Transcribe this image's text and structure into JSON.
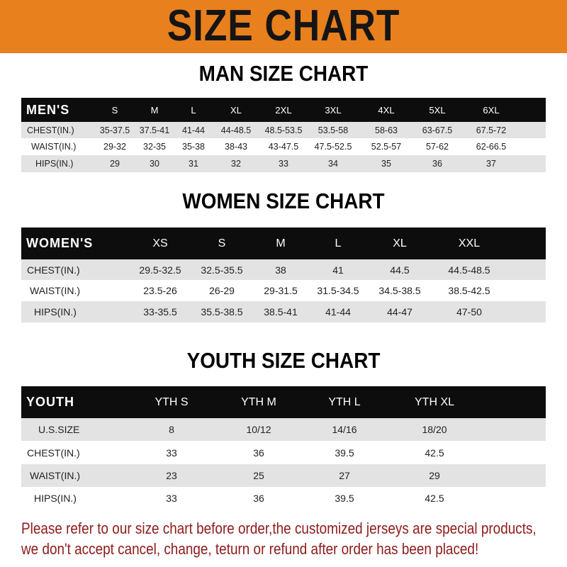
{
  "banner": {
    "title": "SIZE CHART",
    "color": "#E8801E"
  },
  "men": {
    "title": "MAN SIZE CHART",
    "header": "MEN'S",
    "sizes": [
      "S",
      "M",
      "L",
      "XL",
      "2XL",
      "3XL",
      "4XL",
      "5XL",
      "6XL"
    ],
    "rows": [
      {
        "label": "CHEST(IN.)",
        "values": [
          "35-37.5",
          "37.5-41",
          "41-44",
          "44-48.5",
          "48.5-53.5",
          "53.5-58",
          "58-63",
          "63-67.5",
          "67.5-72"
        ]
      },
      {
        "label": "WAIST(IN.)",
        "values": [
          "29-32",
          "32-35",
          "35-38",
          "38-43",
          "43-47.5",
          "47.5-52.5",
          "52.5-57",
          "57-62",
          "62-66.5"
        ]
      },
      {
        "label": "HIPS(IN.)",
        "values": [
          "29",
          "30",
          "31",
          "32",
          "33",
          "34",
          "35",
          "36",
          "37"
        ]
      }
    ]
  },
  "women": {
    "title": "WOMEN SIZE CHART",
    "header": "WOMEN'S",
    "sizes": [
      "XS",
      "S",
      "M",
      "L",
      "XL",
      "XXL"
    ],
    "rows": [
      {
        "label": "CHEST(IN.)",
        "values": [
          "29.5-32.5",
          "32.5-35.5",
          "38",
          "41",
          "44.5",
          "44.5-48.5"
        ]
      },
      {
        "label": "WAIST(IN.)",
        "values": [
          "23.5-26",
          "26-29",
          "29-31.5",
          "31.5-34.5",
          "34.5-38.5",
          "38.5-42.5"
        ]
      },
      {
        "label": "HIPS(IN.)",
        "values": [
          "33-35.5",
          "35.5-38.5",
          "38.5-41",
          "41-44",
          "44-47",
          "47-50"
        ]
      }
    ]
  },
  "youth": {
    "title": "YOUTH SIZE CHART",
    "header": "YOUTH",
    "sizes": [
      "YTH S",
      "YTH M",
      "YTH L",
      "YTH XL"
    ],
    "rows": [
      {
        "label": "U.S.SIZE",
        "values": [
          "8",
          "10/12",
          "14/16",
          "18/20"
        ]
      },
      {
        "label": "CHEST(IN.)",
        "values": [
          "33",
          "36",
          "39.5",
          "42.5"
        ]
      },
      {
        "label": "WAIST(IN.)",
        "values": [
          "23",
          "25",
          "27",
          "29"
        ]
      },
      {
        "label": "HIPS(IN.)",
        "values": [
          "33",
          "36",
          "39.5",
          "42.5"
        ]
      }
    ]
  },
  "notice": {
    "line1": "Please refer to our size chart before order,the customized jerseys are special products,",
    "line2": "we don't accept cancel, change, teturn or refund after order has been placed!",
    "color": "#8e1b1b"
  }
}
